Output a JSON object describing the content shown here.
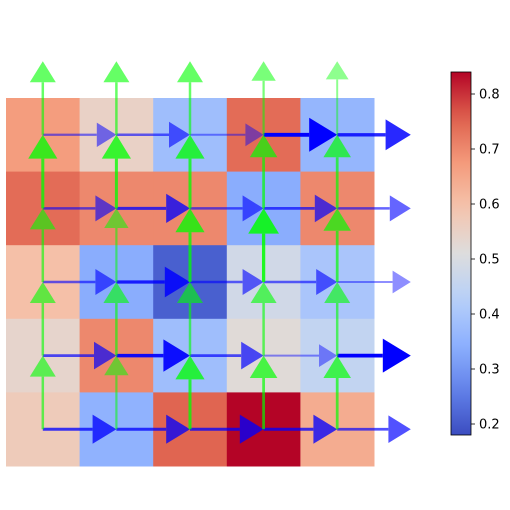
{
  "chart_data": {
    "type": "heatmap",
    "title": "",
    "xlabel": "",
    "ylabel": "",
    "grid": false,
    "axes_visible": false,
    "colormap": "coolwarm",
    "colorbar": {
      "min": 0.18,
      "max": 0.84,
      "ticks": [
        0.2,
        0.3,
        0.4,
        0.5,
        0.6,
        0.7,
        0.8
      ],
      "tick_labels": [
        "0.2",
        "0.3",
        "0.4",
        "0.5",
        "0.6",
        "0.7",
        "0.8"
      ]
    },
    "matrix": [
      [
        0.67,
        0.55,
        0.38,
        0.74,
        0.36
      ],
      [
        0.74,
        0.7,
        0.7,
        0.34,
        0.7
      ],
      [
        0.6,
        0.34,
        0.21,
        0.48,
        0.4
      ],
      [
        0.54,
        0.7,
        0.38,
        0.52,
        0.45
      ],
      [
        0.57,
        0.35,
        0.75,
        0.84,
        0.64
      ]
    ],
    "quiver_right": {
      "color": "#0000ff",
      "magnitudes": [
        [
          0.4,
          0.5,
          0.3,
          1.0,
          0.8
        ],
        [
          0.5,
          0.7,
          0.5,
          0.6,
          0.5
        ],
        [
          0.5,
          0.8,
          0.5,
          0.5,
          0.3
        ],
        [
          0.6,
          0.9,
          0.6,
          0.3,
          1.0
        ],
        [
          0.7,
          0.7,
          0.7,
          0.7,
          0.6
        ]
      ]
    },
    "quiver_up": {
      "color": "#00ff00",
      "magnitudes": [
        [
          0.5,
          0.5,
          0.5,
          0.4,
          0.3
        ],
        [
          0.7,
          0.7,
          0.7,
          0.6,
          0.6
        ],
        [
          0.5,
          0.4,
          0.7,
          0.8,
          0.6
        ],
        [
          0.5,
          0.5,
          0.5,
          0.5,
          0.5
        ],
        [
          0.5,
          0.4,
          0.7,
          0.6,
          0.6
        ]
      ]
    }
  }
}
